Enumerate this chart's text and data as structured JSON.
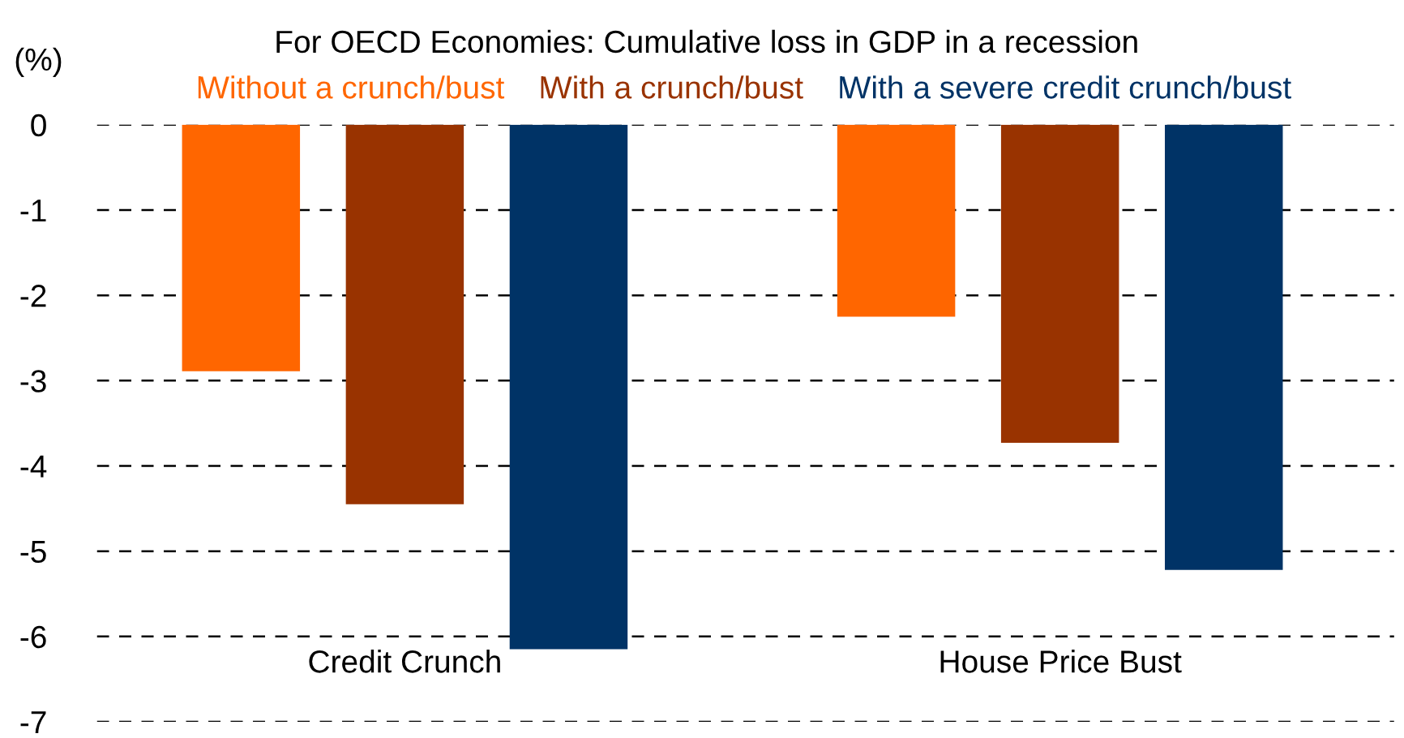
{
  "chart_data": {
    "type": "bar",
    "title": "For OECD Economies: Cumulative loss in GDP in a recession",
    "ylabel": "(%)",
    "categories": [
      "Credit Crunch",
      "House Price Bust"
    ],
    "series": [
      {
        "name": "Without a crunch/bust",
        "color": "#ff6600",
        "values": [
          -2.89,
          -2.25
        ]
      },
      {
        "name": "With a crunch/bust",
        "color": "#993300",
        "values": [
          -4.45,
          -3.73
        ]
      },
      {
        "name": "With a severe credit crunch/bust",
        "color": "#003366",
        "values": [
          -6.15,
          -5.22
        ]
      }
    ],
    "ylim": [
      -7,
      0
    ],
    "yticks": [
      0,
      -1,
      -2,
      -3,
      -4,
      -5,
      -6,
      -7
    ],
    "grid": "y",
    "legend": "top"
  }
}
